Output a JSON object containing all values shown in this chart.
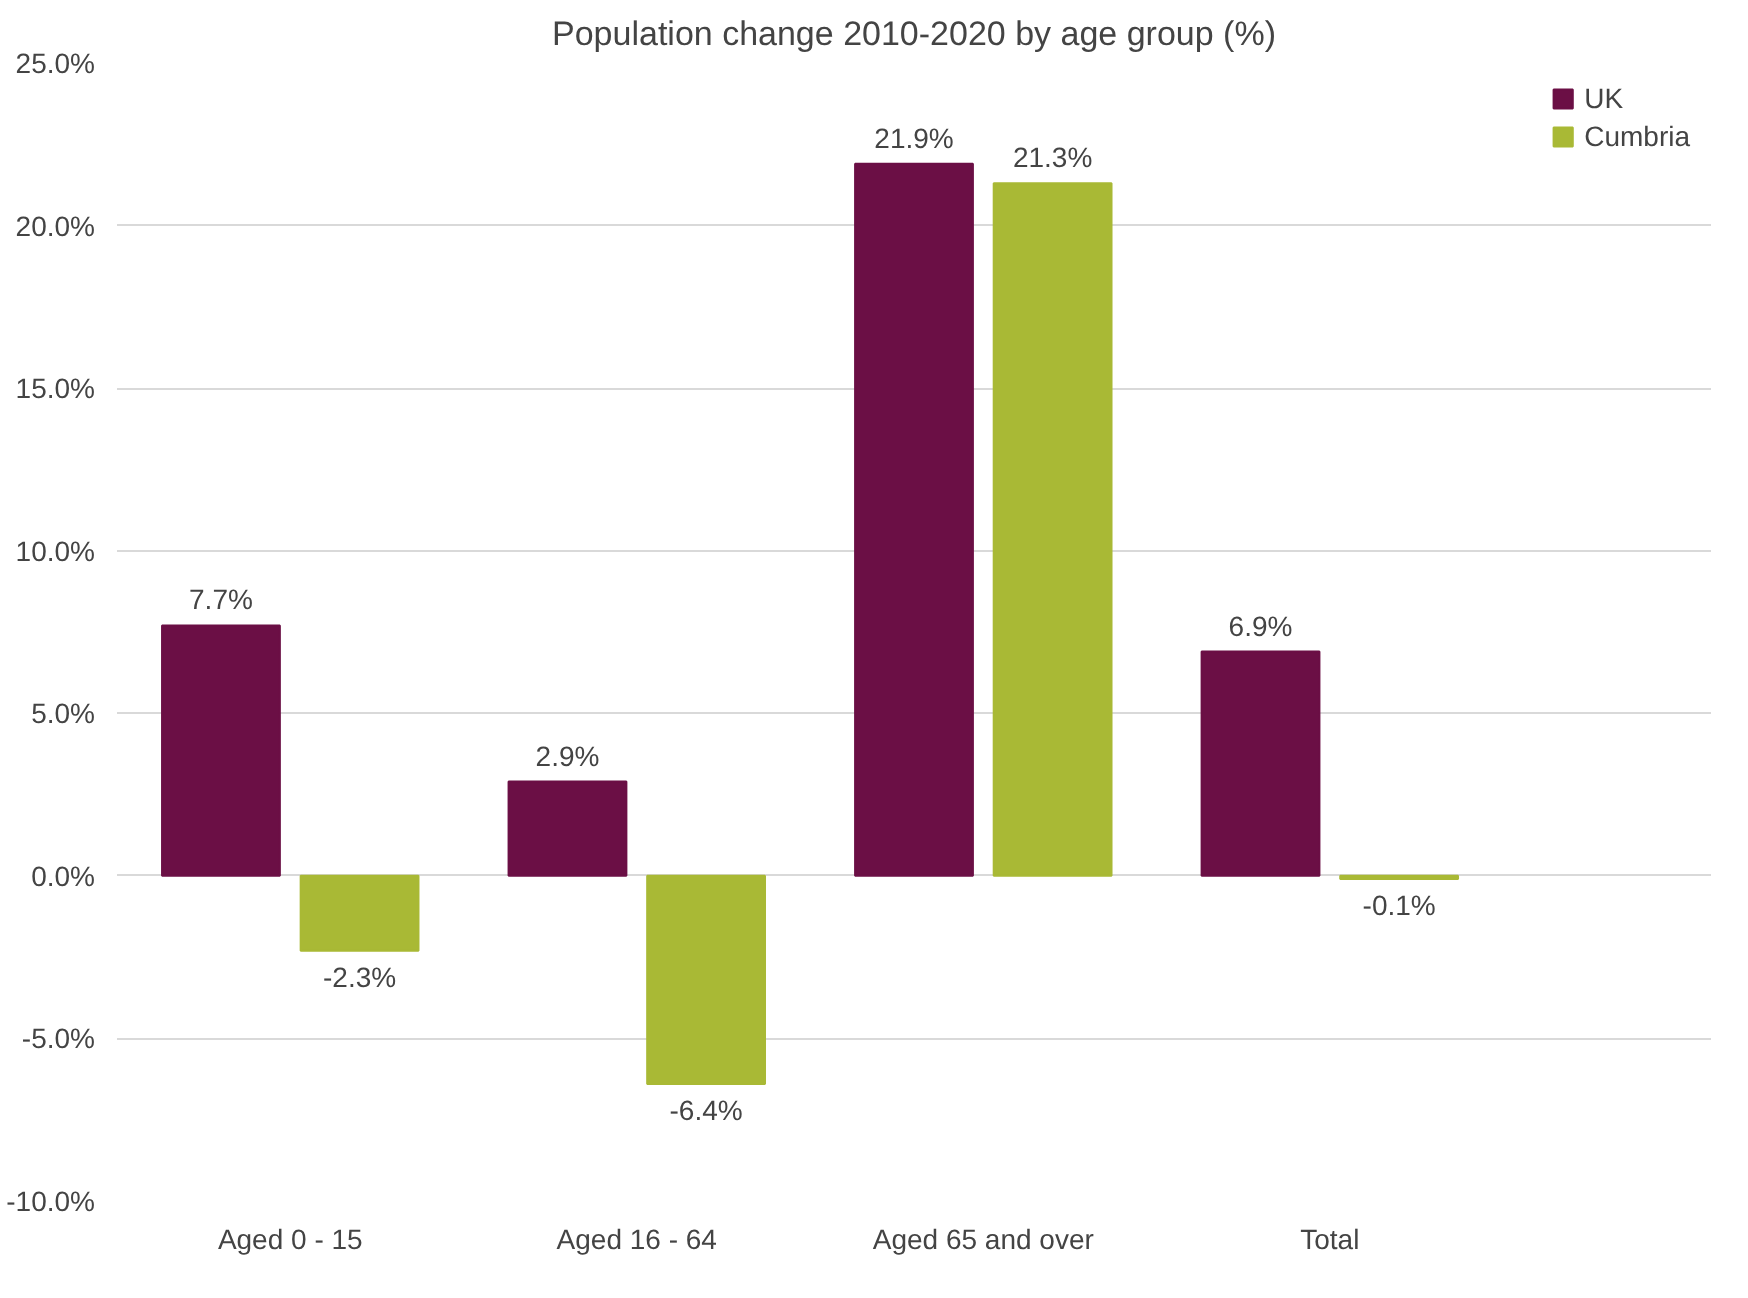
{
  "chart_data": {
    "type": "bar",
    "title": "Population change 2010-2020 by age group (%)",
    "categories": [
      "Aged 0 - 15",
      "Aged 16 - 64",
      "Aged 65 and over",
      "Total"
    ],
    "series": [
      {
        "name": "UK",
        "color": "#6b0f45",
        "values": [
          7.7,
          2.9,
          21.9,
          6.9
        ],
        "value_labels": [
          "7.7%",
          "2.9%",
          "21.9%",
          "6.9%"
        ]
      },
      {
        "name": "Cumbria",
        "color": "#a9b935",
        "values": [
          -2.3,
          -6.4,
          21.3,
          -0.1
        ],
        "value_labels": [
          "-2.3%",
          "-6.4%",
          "21.3%",
          "-0.1%"
        ]
      }
    ],
    "ylim": [
      -10,
      25
    ],
    "yticks": [
      {
        "value": -10,
        "label": "-10.0%"
      },
      {
        "value": -5,
        "label": "-5.0%"
      },
      {
        "value": 0,
        "label": "0.0%"
      },
      {
        "value": 5,
        "label": "5.0%"
      },
      {
        "value": 10,
        "label": "10.0%"
      },
      {
        "value": 15,
        "label": "15.0%"
      },
      {
        "value": 20,
        "label": "20.0%"
      },
      {
        "value": 25,
        "label": "25.0%"
      }
    ],
    "grid": "y",
    "legend": "top right"
  }
}
